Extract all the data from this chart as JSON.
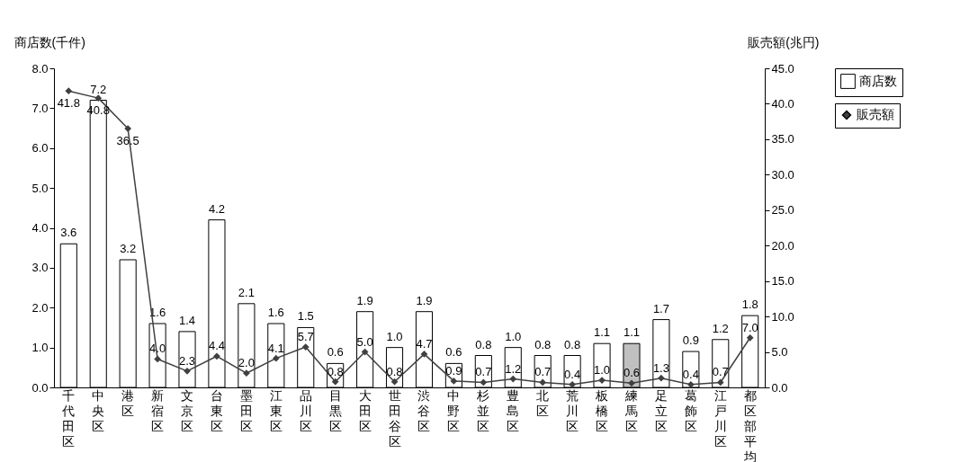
{
  "chart_data": {
    "type": "bar",
    "ylabel": "商店数(千件)",
    "y2label": "販売額(兆円)",
    "categories": [
      "千代田区",
      "中央区",
      "港区",
      "新宿区",
      "文京区",
      "台東区",
      "墨田区",
      "江東区",
      "品川区",
      "目黒区",
      "大田区",
      "世田谷区",
      "渋谷区",
      "中野区",
      "杉並区",
      "豊島区",
      "北区",
      "荒川区",
      "板橋区",
      "練馬区",
      "足立区",
      "葛飾区",
      "江戸川区",
      "都区部平均"
    ],
    "series": [
      {
        "name": "商店数",
        "color": "#ffffff",
        "value_labels": [
          "3.6",
          "7.2",
          "3.2",
          "1.6",
          "1.4",
          "4.2",
          "2.1",
          "1.6",
          "1.5",
          "0.6",
          "1.9",
          "1.0",
          "1.9",
          "0.6",
          "0.8",
          "1.0",
          "0.8",
          "0.8",
          "1.1",
          "1.1",
          "1.7",
          "0.9",
          "1.2",
          "1.8"
        ],
        "colors": [
          "#ffffff",
          "#ffffff",
          "#ffffff",
          "#ffffff",
          "#ffffff",
          "#ffffff",
          "#ffffff",
          "#ffffff",
          "#ffffff",
          "#ffffff",
          "#ffffff",
          "#ffffff",
          "#ffffff",
          "#ffffff",
          "#ffffff",
          "#ffffff",
          "#ffffff",
          "#ffffff",
          "#ffffff",
          "#c0c0c0",
          "#ffffff",
          "#ffffff",
          "#ffffff",
          "#ffffff"
        ],
        "values": [
          3.6,
          7.2,
          3.2,
          1.6,
          1.4,
          4.2,
          2.1,
          1.6,
          1.5,
          0.6,
          1.9,
          1.0,
          1.9,
          0.6,
          0.8,
          1.0,
          0.8,
          0.8,
          1.1,
          1.1,
          1.7,
          0.9,
          1.2,
          1.8
        ]
      },
      {
        "name": "販売額",
        "type": "line",
        "axis": "y2",
        "color": "#404040",
        "marker": "diamond",
        "value_labels": [
          "41.8",
          "40.8",
          "36.5",
          "4.0",
          "2.3",
          "4.4",
          "2.0",
          "4.1",
          "5.7",
          "0.8",
          "5.0",
          "0.8",
          "4.7",
          "0.9",
          "0.7",
          "1.2",
          "0.7",
          "0.4",
          "1.0",
          "0.6",
          "1.3",
          "0.4",
          "0.7",
          "7.0"
        ],
        "values": [
          41.8,
          40.8,
          36.5,
          4.0,
          2.3,
          4.4,
          2.0,
          4.1,
          5.7,
          0.8,
          5.0,
          0.8,
          4.7,
          0.9,
          0.7,
          1.2,
          0.7,
          0.4,
          1.0,
          0.6,
          1.3,
          0.4,
          0.7,
          7.0
        ]
      }
    ],
    "ylim": [
      0,
      8
    ],
    "yticks": [
      {
        "value": 0,
        "label": "0.0"
      },
      {
        "value": 1,
        "label": "1.0"
      },
      {
        "value": 2,
        "label": "2.0"
      },
      {
        "value": 3,
        "label": "3.0"
      },
      {
        "value": 4,
        "label": "4.0"
      },
      {
        "value": 5,
        "label": "5.0"
      },
      {
        "value": 6,
        "label": "6.0"
      },
      {
        "value": 7,
        "label": "7.0"
      },
      {
        "value": 8,
        "label": "8.0"
      }
    ],
    "y2lim": [
      0,
      45
    ],
    "y2ticks": [
      {
        "value": 0,
        "label": "0.0"
      },
      {
        "value": 5,
        "label": "5.0"
      },
      {
        "value": 10,
        "label": "10.0"
      },
      {
        "value": 15,
        "label": "15.0"
      },
      {
        "value": 20,
        "label": "20.0"
      },
      {
        "value": 25,
        "label": "25.0"
      },
      {
        "value": 30,
        "label": "30.0"
      },
      {
        "value": 35,
        "label": "35.0"
      },
      {
        "value": 40,
        "label": "40.0"
      },
      {
        "value": 45,
        "label": "45.0"
      }
    ],
    "grid": false,
    "legend": "right"
  }
}
